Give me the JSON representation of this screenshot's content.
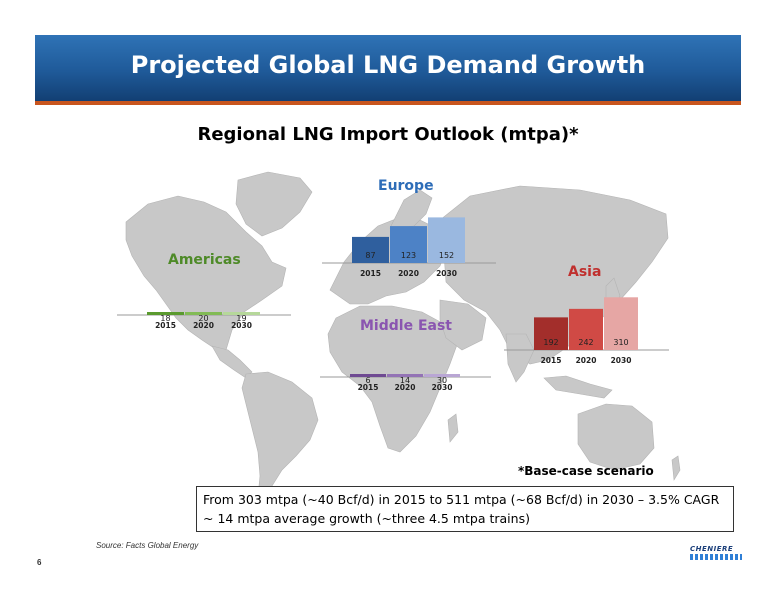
{
  "header": {
    "title": "Projected Global LNG Demand Growth"
  },
  "subtitle": "Regional LNG Import Outlook (mtpa)*",
  "footnote": "*Base-case scenario",
  "summary": {
    "line1": "From 303 mtpa (~40 Bcf/d) in 2015 to 511 mtpa (~68 Bcf/d) in 2030 – 3.5% CAGR",
    "line2": "~ 14 mtpa average growth (~three 4.5 mtpa trains)"
  },
  "source": "Source: Facts Global Energy",
  "page_number": "6",
  "logo_text": "CHENIERE",
  "colors": {
    "banner": "#1f5a99",
    "banner_rule": "#c8551e",
    "americas": "#4e8a28",
    "europe": "#2e6db8",
    "middle_east": "#8a55b0",
    "asia": "#c0302e",
    "land": "#c8c8c8"
  },
  "chart_data": [
    {
      "type": "bar",
      "title": "Americas",
      "categories": [
        "2015",
        "2020",
        "2030"
      ],
      "values": [
        18,
        20,
        19
      ],
      "colors": [
        "#5a9a2e",
        "#82bb55",
        "#b6d89a"
      ]
    },
    {
      "type": "bar",
      "title": "Europe",
      "categories": [
        "2015",
        "2020",
        "2030"
      ],
      "values": [
        87,
        123,
        152
      ],
      "colors": [
        "#2f5f9e",
        "#4d82c6",
        "#9ab8e0"
      ]
    },
    {
      "type": "bar",
      "title": "Middle East",
      "categories": [
        "2015",
        "2020",
        "2030"
      ],
      "values": [
        6,
        14,
        30
      ],
      "colors": [
        "#6f4a92",
        "#9373b5",
        "#b9a6d4"
      ]
    },
    {
      "type": "bar",
      "title": "Asia",
      "categories": [
        "2015",
        "2020",
        "2030"
      ],
      "values": [
        192,
        242,
        310
      ],
      "colors": [
        "#a32e2b",
        "#d04a45",
        "#e6a6a4"
      ]
    }
  ]
}
